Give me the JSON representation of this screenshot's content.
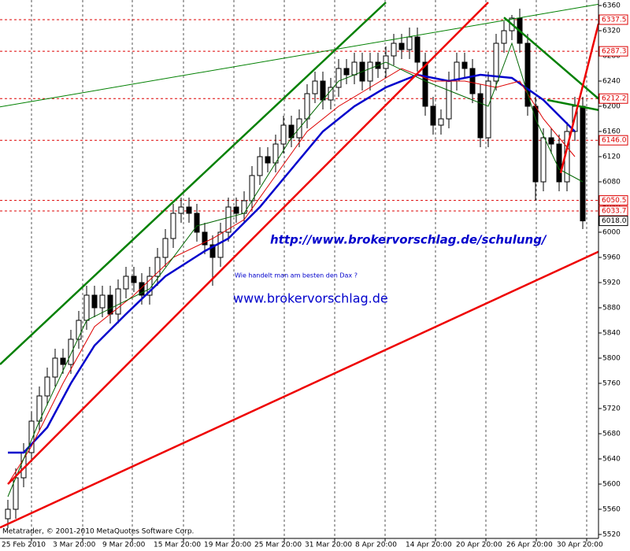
{
  "chart_data": {
    "type": "candlestick",
    "open": [
      5545,
      5560,
      5610,
      5650,
      5700,
      5740,
      5770,
      5800,
      5790,
      5830,
      5860,
      5900,
      5880,
      5900,
      5870,
      5910,
      5930,
      5920,
      5900,
      5930,
      5960,
      5990,
      6030,
      6040,
      6030,
      6000,
      5980,
      5960,
      6000,
      6040,
      6030,
      6050,
      6090,
      6120,
      6110,
      6140,
      6170,
      6150,
      6180,
      6220,
      6240,
      6210,
      6230,
      6260,
      6250,
      6270,
      6240,
      6270,
      6260,
      6280,
      6300,
      6290,
      6310,
      6270,
      6200,
      6170,
      6180,
      6240,
      6270,
      6260,
      6220,
      6150,
      6240,
      6300,
      6320,
      6340,
      6300,
      6200,
      6080,
      6150,
      6140,
      6080,
      6160,
      6200
    ],
    "high": [
      5575,
      5625,
      5665,
      5715,
      5755,
      5785,
      5815,
      5815,
      5845,
      5875,
      5915,
      5915,
      5915,
      5915,
      5925,
      5945,
      5945,
      5935,
      5945,
      5975,
      6005,
      6045,
      6055,
      6055,
      6045,
      6015,
      5995,
      6015,
      6055,
      6055,
      6065,
      6105,
      6135,
      6135,
      6155,
      6185,
      6185,
      6195,
      6235,
      6255,
      6255,
      6245,
      6275,
      6275,
      6285,
      6285,
      6285,
      6285,
      6295,
      6315,
      6315,
      6325,
      6325,
      6285,
      6215,
      6195,
      6255,
      6285,
      6285,
      6275,
      6235,
      6255,
      6315,
      6335,
      6345,
      6355,
      6315,
      6215,
      6165,
      6165,
      6155,
      6175,
      6215,
      6215
    ],
    "low": [
      5530,
      5545,
      5595,
      5635,
      5685,
      5725,
      5755,
      5775,
      5775,
      5815,
      5845,
      5865,
      5865,
      5855,
      5855,
      5895,
      5905,
      5885,
      5885,
      5915,
      5945,
      5975,
      6015,
      6015,
      5985,
      5965,
      5915,
      5945,
      5985,
      6015,
      6015,
      6035,
      6075,
      6095,
      6095,
      6125,
      6135,
      6135,
      6165,
      6205,
      6195,
      6195,
      6215,
      6235,
      6235,
      6225,
      6225,
      6245,
      6245,
      6265,
      6275,
      6275,
      6255,
      6185,
      6155,
      6155,
      6165,
      6225,
      6245,
      6205,
      6135,
      6135,
      6225,
      6285,
      6305,
      6285,
      6185,
      6050,
      6065,
      6125,
      6065,
      6065,
      6145,
      6005
    ],
    "close": [
      5560,
      5610,
      5650,
      5700,
      5740,
      5770,
      5800,
      5790,
      5830,
      5860,
      5900,
      5880,
      5900,
      5870,
      5910,
      5930,
      5920,
      5900,
      5930,
      5960,
      5990,
      6030,
      6040,
      6030,
      6000,
      5980,
      5960,
      6000,
      6040,
      6030,
      6050,
      6090,
      6120,
      6110,
      6140,
      6170,
      6150,
      6180,
      6220,
      6240,
      6210,
      6230,
      6260,
      6250,
      6270,
      6240,
      6270,
      6260,
      6280,
      6300,
      6290,
      6310,
      6270,
      6200,
      6170,
      6180,
      6240,
      6270,
      6260,
      6220,
      6150,
      6240,
      6300,
      6320,
      6340,
      6300,
      6200,
      6080,
      6150,
      6140,
      6080,
      6160,
      6200,
      6018
    ],
    "moving_averages": [
      {
        "color": "#0000cc",
        "x": [
          0,
          2,
          5,
          8,
          11,
          15,
          20,
          25,
          28,
          32,
          36,
          40,
          44,
          48,
          52,
          56,
          60,
          64,
          68,
          72
        ],
        "values": [
          5650,
          5650,
          5690,
          5760,
          5820,
          5870,
          5930,
          5970,
          5990,
          6040,
          6100,
          6160,
          6200,
          6230,
          6250,
          6240,
          6250,
          6245,
          6210,
          6160
        ]
      },
      {
        "color": "#dd0000",
        "x": [
          0,
          3,
          7,
          11,
          16,
          21,
          26,
          30,
          34,
          38,
          42,
          46,
          50,
          54,
          58,
          62,
          65,
          68,
          72
        ],
        "values": [
          5600,
          5660,
          5760,
          5850,
          5900,
          5960,
          5990,
          6020,
          6090,
          6160,
          6200,
          6230,
          6260,
          6240,
          6240,
          6230,
          6240,
          6180,
          6120
        ]
      },
      {
        "color": "#006600",
        "x": [
          0,
          4,
          10,
          18,
          24,
          30,
          36,
          42,
          48,
          53,
          57,
          61,
          64,
          67,
          70,
          73
        ],
        "values": [
          5580,
          5700,
          5860,
          5910,
          6010,
          6030,
          6150,
          6240,
          6270,
          6240,
          6220,
          6200,
          6300,
          6180,
          6100,
          6080
        ]
      }
    ],
    "trendlines": [
      {
        "color": "#008000",
        "x": [
          -1,
          48
        ],
        "values": [
          5790,
          6365
        ]
      },
      {
        "color": "#008000",
        "x": [
          -1,
          75
        ],
        "values": [
          6199,
          6362
        ]
      },
      {
        "color": "#ee0000",
        "x": [
          0,
          61
        ],
        "values": [
          5600,
          6365
        ]
      },
      {
        "color": "#ee0000",
        "x": [
          -1,
          75
        ],
        "values": [
          5531,
          5969
        ]
      },
      {
        "color": "#008000",
        "x": [
          63,
          75
        ],
        "values": [
          6341,
          6212
        ]
      },
      {
        "color": "#008000",
        "x": [
          68.5,
          75
        ],
        "values": [
          6210,
          6194
        ]
      },
      {
        "color": "#ee0000",
        "x": [
          70.2,
          75
        ],
        "values": [
          6094,
          6331
        ]
      }
    ],
    "levels": [
      6337.5,
      6287.3,
      6212.2,
      {
        "value": 6146,
        "label": "6146.0"
      },
      6050.5,
      6033.7
    ],
    "last_price": {
      "value": 6018,
      "label": "6018.0"
    },
    "xlim": [
      -1,
      75
    ],
    "ylim": [
      5520,
      6360
    ],
    "yticks": [
      5520,
      5560,
      5600,
      5640,
      5680,
      5720,
      5760,
      5800,
      5840,
      5880,
      5920,
      5960,
      6000,
      6040,
      6080,
      6120,
      6160,
      6200,
      6240,
      6280,
      6320,
      6360
    ],
    "xticks": [
      {
        "value": 3,
        "label": "25 Feb 2010"
      },
      {
        "value": 9.5,
        "label": "3 Mar 20:00"
      },
      {
        "value": 15.8,
        "label": "9 Mar 20:00"
      },
      {
        "value": 22.3,
        "label": "15 Mar 20:00"
      },
      {
        "value": 28.7,
        "label": "19 Mar 20:00"
      },
      {
        "value": 35.1,
        "label": "25 Mar 20:00"
      },
      {
        "value": 41.5,
        "label": "31 Mar 20:00"
      },
      {
        "value": 47.9,
        "label": "8 Apr 20:00"
      },
      {
        "value": 54.3,
        "label": "14 Apr 20:00"
      },
      {
        "value": 60.7,
        "label": "20 Apr 20:00"
      },
      {
        "value": 67.1,
        "label": "26 Apr 20:00"
      },
      {
        "value": 73.5,
        "label": "30 Apr 20:00"
      }
    ],
    "grid": true,
    "annotations": [
      "http://www.brokervorschlag.de/schulung/",
      "Wie handelt man am besten den Dax ?",
      "www.brokervorschlag.de"
    ],
    "copyright": "Metatrader, © 2001-2010 MetaQuotes Software Corp."
  }
}
